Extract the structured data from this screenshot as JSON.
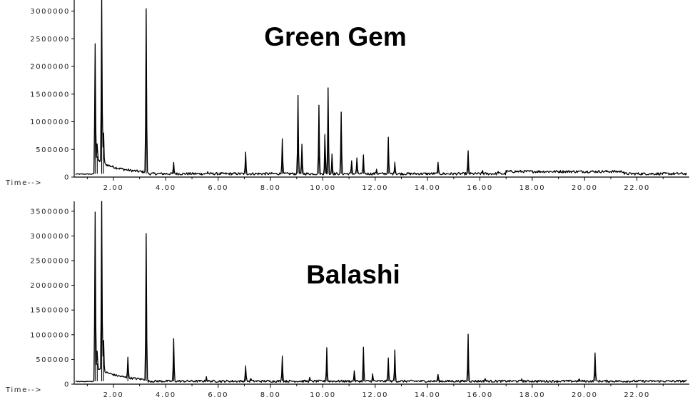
{
  "chart_data": [
    {
      "type": "line",
      "title": "Green Gem",
      "xlabel": "Time-->",
      "ylabel": "",
      "xlim": [
        0.5,
        24.0
      ],
      "ylim": [
        0,
        3200000
      ],
      "yticks": [
        0,
        500000,
        1000000,
        1500000,
        2000000,
        2500000,
        3000000
      ],
      "ytick_labels": [
        "0",
        "500000",
        "1000000",
        "1500000",
        "2000000",
        "2500000",
        "3000000"
      ],
      "xticks": [
        2,
        4,
        6,
        8,
        10,
        12,
        14,
        16,
        18,
        20,
        22
      ],
      "xtick_labels": [
        "2.00",
        "4.00",
        "6.00",
        "8.00",
        "10.00",
        "12.00",
        "14.00",
        "16.00",
        "18.00",
        "20.00",
        "22.00"
      ],
      "baseline": 60000,
      "grid": false,
      "peaks": [
        {
          "x": 1.3,
          "y": 2130000
        },
        {
          "x": 1.38,
          "y": 380000
        },
        {
          "x": 1.55,
          "y": 3300000
        },
        {
          "x": 1.62,
          "y": 650000
        },
        {
          "x": 3.25,
          "y": 3020000
        },
        {
          "x": 4.3,
          "y": 250000
        },
        {
          "x": 5.6,
          "y": 100000
        },
        {
          "x": 7.05,
          "y": 440000
        },
        {
          "x": 8.45,
          "y": 700000
        },
        {
          "x": 9.05,
          "y": 1480000
        },
        {
          "x": 9.2,
          "y": 580000
        },
        {
          "x": 9.85,
          "y": 1300000
        },
        {
          "x": 10.08,
          "y": 780000
        },
        {
          "x": 10.2,
          "y": 1620000
        },
        {
          "x": 10.35,
          "y": 420000
        },
        {
          "x": 10.7,
          "y": 1180000
        },
        {
          "x": 11.1,
          "y": 300000
        },
        {
          "x": 11.3,
          "y": 350000
        },
        {
          "x": 11.55,
          "y": 380000
        },
        {
          "x": 12.05,
          "y": 150000
        },
        {
          "x": 12.5,
          "y": 700000
        },
        {
          "x": 12.75,
          "y": 280000
        },
        {
          "x": 14.4,
          "y": 250000
        },
        {
          "x": 15.55,
          "y": 460000
        },
        {
          "x": 16.1,
          "y": 120000
        },
        {
          "x": 16.7,
          "y": 110000
        }
      ]
    },
    {
      "type": "line",
      "title": "Balashi",
      "xlabel": "Time-->",
      "ylabel": "",
      "xlim": [
        0.5,
        24.0
      ],
      "ylim": [
        0,
        3700000
      ],
      "yticks": [
        0,
        500000,
        1000000,
        1500000,
        2000000,
        2500000,
        3000000,
        3500000
      ],
      "ytick_labels": [
        "0",
        "500000",
        "1000000",
        "1500000",
        "2000000",
        "2500000",
        "3000000",
        "3500000"
      ],
      "xticks": [
        2,
        4,
        6,
        8,
        10,
        12,
        14,
        16,
        18,
        20,
        22
      ],
      "xtick_labels": [
        "2.00",
        "4.00",
        "6.00",
        "8.00",
        "10.00",
        "12.00",
        "14.00",
        "16.00",
        "18.00",
        "20.00",
        "22.00"
      ],
      "baseline": 60000,
      "grid": false,
      "peaks": [
        {
          "x": 1.3,
          "y": 3180000
        },
        {
          "x": 1.38,
          "y": 420000
        },
        {
          "x": 1.55,
          "y": 3720000
        },
        {
          "x": 1.62,
          "y": 700000
        },
        {
          "x": 2.55,
          "y": 480000
        },
        {
          "x": 3.25,
          "y": 3000000
        },
        {
          "x": 4.3,
          "y": 920000
        },
        {
          "x": 5.55,
          "y": 150000
        },
        {
          "x": 7.05,
          "y": 380000
        },
        {
          "x": 7.25,
          "y": 120000
        },
        {
          "x": 8.45,
          "y": 580000
        },
        {
          "x": 9.5,
          "y": 120000
        },
        {
          "x": 10.15,
          "y": 740000
        },
        {
          "x": 11.2,
          "y": 280000
        },
        {
          "x": 11.55,
          "y": 740000
        },
        {
          "x": 11.9,
          "y": 200000
        },
        {
          "x": 12.5,
          "y": 540000
        },
        {
          "x": 12.75,
          "y": 680000
        },
        {
          "x": 14.4,
          "y": 200000
        },
        {
          "x": 15.55,
          "y": 1000000
        },
        {
          "x": 16.2,
          "y": 120000
        },
        {
          "x": 17.6,
          "y": 110000
        },
        {
          "x": 19.8,
          "y": 100000
        },
        {
          "x": 20.4,
          "y": 640000
        }
      ]
    }
  ]
}
